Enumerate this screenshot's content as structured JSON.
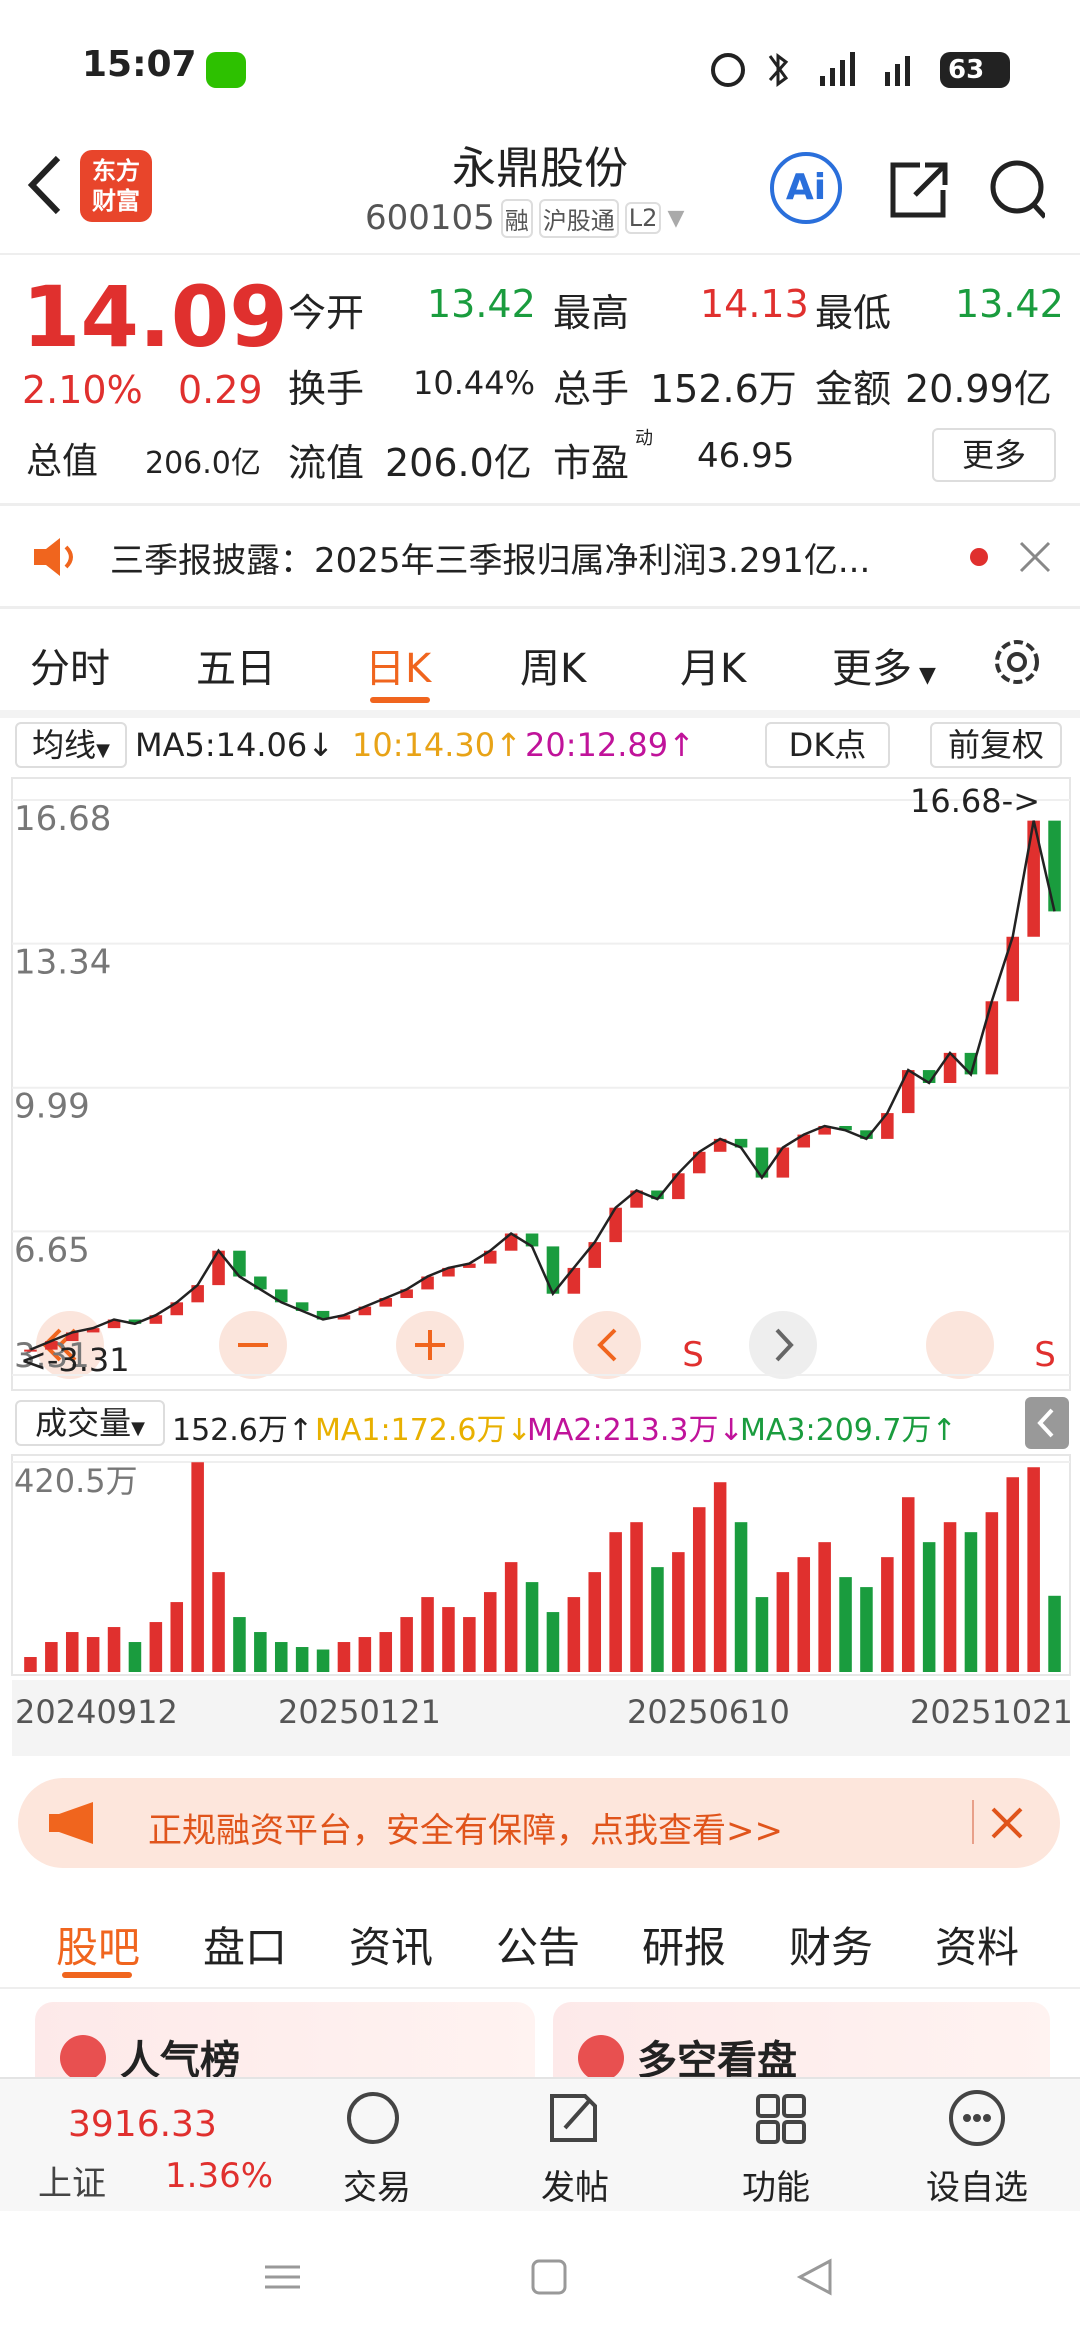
{
  "status_bar": {
    "time": "15:07",
    "battery": "63"
  },
  "header": {
    "logo": [
      "东方",
      "财富"
    ],
    "title": "永鼎股份",
    "code": "600105",
    "tags": [
      "融",
      "沪股通",
      "L2"
    ],
    "ai": "Ai"
  },
  "quote": {
    "price": "14.09",
    "change_pct": "2.10%",
    "change": "0.29",
    "fields": [
      {
        "label": "今开",
        "value": "13.42"
      },
      {
        "label": "最高",
        "value": "14.13"
      },
      {
        "label": "最低",
        "value": "13.42"
      },
      {
        "label": "换手",
        "value": "10.44%"
      },
      {
        "label": "总手",
        "value": "152.6万"
      },
      {
        "label": "金额",
        "value": "20.99亿"
      },
      {
        "label": "总值",
        "value": "206.0亿"
      },
      {
        "label": "流值",
        "value": "206.0亿"
      },
      {
        "label": "市盈",
        "value": "46.95"
      }
    ],
    "pe_badge": "动",
    "more": "更多"
  },
  "notice": "三季报披露：2025年三季报归属净利润3.291亿...",
  "chart_tabs": [
    "分时",
    "五日",
    "日K",
    "周K",
    "月K",
    "更多"
  ],
  "chart_settings": {
    "ma_toggle": "均线",
    "ma": [
      "MA5:14.06↓",
      "10:14.30↑",
      "20:12.89↑"
    ],
    "dk": "DK点",
    "adjust": "前复权"
  },
  "kline": {
    "ylim": [
      3.31,
      16.68
    ],
    "yticks": [
      16.68,
      13.34,
      9.99,
      6.65,
      3.31
    ],
    "max_label": "16.68->",
    "min_label": "<-3.31",
    "signals": [
      "S",
      "S"
    ],
    "close": [
      3.9,
      4.1,
      4.3,
      4.4,
      4.6,
      4.5,
      4.7,
      5.0,
      5.4,
      6.2,
      5.6,
      5.3,
      5.0,
      4.8,
      4.6,
      4.7,
      4.9,
      5.1,
      5.3,
      5.6,
      5.8,
      5.9,
      6.2,
      6.6,
      6.3,
      5.2,
      5.8,
      6.4,
      7.2,
      7.6,
      7.4,
      8.0,
      8.5,
      8.8,
      8.6,
      7.9,
      8.6,
      8.9,
      9.1,
      9.0,
      8.8,
      9.4,
      10.4,
      10.1,
      10.8,
      10.3,
      12.0,
      13.5,
      16.2,
      14.09
    ]
  },
  "volume": {
    "toggle": "成交量",
    "stats": [
      "152.6万↑",
      "MA1:172.6万↓",
      "MA2:213.3万↓",
      "MA3:209.7万↑"
    ],
    "ylim": [
      0,
      420.5
    ],
    "yticks": [
      {
        "value": 420.5,
        "label": "420.5万"
      }
    ],
    "values": [
      30,
      60,
      80,
      70,
      90,
      60,
      100,
      140,
      420,
      200,
      110,
      80,
      60,
      50,
      45,
      60,
      70,
      80,
      110,
      150,
      130,
      110,
      160,
      220,
      180,
      120,
      150,
      200,
      280,
      300,
      210,
      240,
      330,
      380,
      300,
      150,
      200,
      230,
      260,
      190,
      170,
      230,
      350,
      260,
      300,
      280,
      320,
      390,
      410,
      152.6
    ]
  },
  "dates": [
    "20240912",
    "20250121",
    "20250610",
    "20251021"
  ],
  "ad": "正规融资平台，安全有保障，点我查看>>",
  "tabs": [
    "股吧",
    "盘口",
    "资讯",
    "公告",
    "研报",
    "财务",
    "资料"
  ],
  "cards": [
    "人气榜",
    "多空看盘"
  ],
  "bottom": {
    "index_value": "3916.33",
    "index_name": "上证",
    "index_change": "1.36%",
    "items": [
      "交易",
      "发帖",
      "功能",
      "设自选"
    ]
  }
}
